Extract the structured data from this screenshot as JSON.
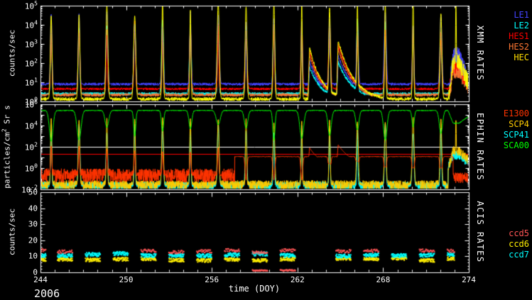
{
  "year_label": "2006",
  "xlabel": "time (DOY)",
  "x_tick_labels": [
    "244",
    "250",
    "256",
    "262",
    "268",
    "274"
  ],
  "background": "#000000",
  "axis_color": "#ffffff",
  "chart_data": [
    {
      "type": "line",
      "title": "XMM RATES",
      "ylabel_pre": "counts/sec",
      "ylabel_sup": "",
      "ylabel_post": "",
      "yscale": "log",
      "ylim": [
        1,
        100000
      ],
      "ytick_exponents": [
        5,
        4,
        3,
        2,
        1,
        0
      ],
      "xlim": [
        244,
        274
      ],
      "spike_times_doy": [
        244.75,
        246.7,
        248.65,
        250.6,
        252.55,
        254.5,
        256.45,
        258.4,
        260.35,
        262.3,
        264.25,
        266.2,
        268.15,
        270.1,
        272.05
      ],
      "event_humps": [
        {
          "t": 262.85,
          "amp": 1.0,
          "tau": 0.9
        },
        {
          "t": 264.85,
          "amp": 1.15,
          "tau": 1.1
        }
      ],
      "end_disturbance": {
        "start": 272.55,
        "ramp": 0.35,
        "decay_start": 273.35,
        "tau": 0.9
      },
      "legend": [
        {
          "label": "LE1",
          "color": "#4444ff"
        },
        {
          "label": "LE2",
          "color": "#00ffff"
        },
        {
          "label": "HES1",
          "color": "#ff0000"
        },
        {
          "label": "HES2",
          "color": "#ff7733"
        },
        {
          "label": "HEC",
          "color": "#ffdd00"
        }
      ],
      "series": [
        {
          "name": "LE1",
          "color": "#4444ff",
          "baseline": 8,
          "spike_peak": 20000,
          "noise_dex": 0.07,
          "event_peak": 120,
          "end_log": 2.4
        },
        {
          "name": "LE2",
          "color": "#00ffff",
          "baseline": 2.5,
          "spike_peak": 9000,
          "noise_dex": 0.08,
          "event_peak": 60,
          "end_log": 2.0
        },
        {
          "name": "HES1",
          "color": "#ff0000",
          "baseline": 4.5,
          "spike_peak": 7000,
          "noise_dex": 0.06,
          "event_peak": 400,
          "end_log": 1.9
        },
        {
          "name": "HES2",
          "color": "#ff7733",
          "baseline": 2.2,
          "spike_peak": 4000,
          "noise_dex": 0.08,
          "event_peak": 250,
          "end_log": 1.6
        },
        {
          "name": "HEC",
          "color": "#ffff00",
          "baseline": 1.3,
          "spike_peak": 70000,
          "noise_dex": 0.1,
          "event_peak": 600,
          "end_log": 2.1,
          "end_spike": {
            "t": 273.1,
            "peak": 100000
          }
        }
      ]
    },
    {
      "type": "line",
      "title": "EPHIN RATES",
      "ylabel_pre": "particles/cm",
      "ylabel_sup": "2",
      "ylabel_post": " Sr s",
      "yscale": "log",
      "ylim": [
        0.01,
        1000000
      ],
      "ytick_exponents": [
        6,
        4,
        2,
        0,
        -2
      ],
      "xlim": [
        244,
        274
      ],
      "thresholds": [
        {
          "value": 100,
          "color": "#ffffff"
        },
        {
          "value": 20,
          "color": "#ff0000"
        }
      ],
      "legend": [
        {
          "label": "E1300",
          "color": "#ff3300"
        },
        {
          "label": "SCP4",
          "color": "#ffcc00"
        },
        {
          "label": "SCP41",
          "color": "#00ffff"
        },
        {
          "label": "SCA00",
          "color": "#00ff00"
        }
      ],
      "series": [
        {
          "name": "SCP4",
          "color": "#ffcc00",
          "baseline": 0.025,
          "spike_peak": 20000,
          "noise_dex": 0.45,
          "end_log": 1.6,
          "end_spike": {
            "t": 273.1,
            "peak": 30000
          }
        },
        {
          "name": "SCP41",
          "color": "#00ffff",
          "baseline": 0.018,
          "spike_peak": 5000,
          "noise_dex": 0.5,
          "end_log": 1.2
        },
        {
          "name": "E1300",
          "color": "#ff3300",
          "low_phase_end": 257.6,
          "low_level": 0.2,
          "flat_level": 12,
          "dip_depth_dex": 2.2,
          "spike_peak": 60,
          "event_peak": 80
        },
        {
          "name": "SCA00",
          "color": "#00ff00",
          "baseline": 260000,
          "noise_dex": 0.04
        }
      ]
    },
    {
      "type": "scatter",
      "title": "ACIS RATES",
      "ylabel_pre": "counts/sec",
      "ylabel_sup": "",
      "ylabel_post": "",
      "yscale": "linear",
      "ylim": [
        0,
        50
      ],
      "yticks": [
        50,
        40,
        30,
        20,
        10,
        0
      ],
      "xlim": [
        244,
        274
      ],
      "legend": [
        {
          "label": "ccd5",
          "color": "#ff5555"
        },
        {
          "label": "ccd6",
          "color": "#ffee00"
        },
        {
          "label": "ccd7",
          "color": "#00ffff"
        }
      ],
      "series": [
        {
          "name": "ccd5",
          "color": "#ff5555",
          "level": 13.2,
          "scatter": 1.0,
          "presence": 0.7
        },
        {
          "name": "ccd6",
          "color": "#ffee00",
          "level": 8.0,
          "scatter": 1.1
        },
        {
          "name": "ccd7",
          "color": "#00ffff",
          "level": 10.9,
          "scatter": 1.2
        }
      ]
    }
  ]
}
